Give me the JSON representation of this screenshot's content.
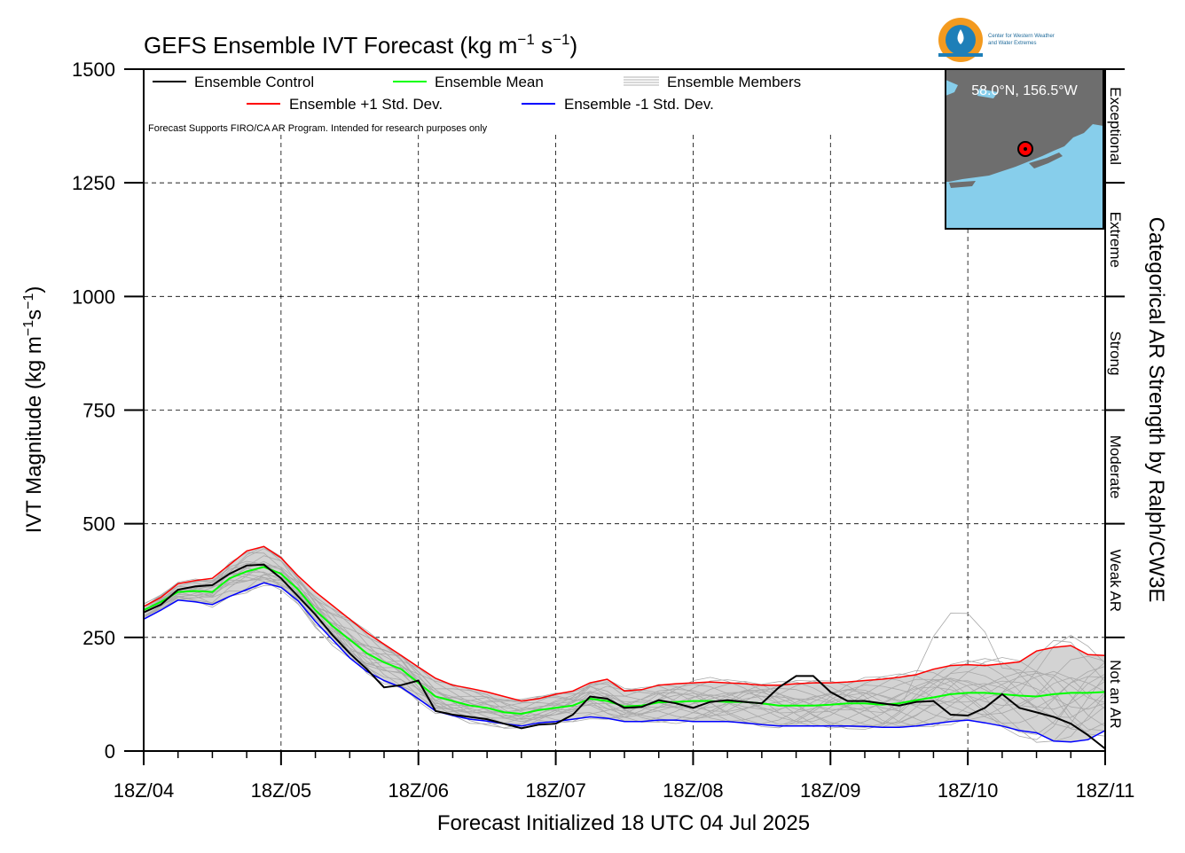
{
  "title": "GEFS Ensemble IVT Forecast (kg m",
  "title_sup1": "−1",
  "title_mid": " s",
  "title_sup2": "−1",
  "title_end": ")",
  "note": "Forecast Supports FIRO/CA AR Program. Intended for research purposes only",
  "logo": {
    "line1": "Center for Western Weather",
    "line2": "and Water Extremes"
  },
  "inset": {
    "location_label": "58.0°N, 156.5°W",
    "land_color": "#6e6e6e",
    "water_color": "#87ceeb",
    "marker_color": "#ff0000"
  },
  "legend": [
    {
      "label": "Ensemble Control",
      "color": "#000000"
    },
    {
      "label": "Ensemble Mean",
      "color": "#00ff00"
    },
    {
      "label": "Ensemble Members",
      "color": "#b0b0b0"
    },
    {
      "label": "Ensemble +1 Std. Dev.",
      "color": "#ff0000"
    },
    {
      "label": "Ensemble -1 Std. Dev.",
      "color": "#0000ff"
    }
  ],
  "chart_data": {
    "type": "line",
    "xlabel": "Forecast Initialized 18 UTC 04 Jul 2025",
    "ylabel": "IVT Magnitude (kg m",
    "ylabel_sup1": "−1",
    "ylabel_mid": "s",
    "ylabel_sup2": "−1",
    "ylabel_end": ")",
    "right_axis_label": "Categorical AR Strength by Ralph/CW3E",
    "x_tick_labels": [
      "18Z/04",
      "18Z/05",
      "18Z/06",
      "18Z/07",
      "18Z/08",
      "18Z/09",
      "18Z/10",
      "18Z/11"
    ],
    "x_units": "forecast hour (0 = 18Z/04)",
    "x_range": [
      0,
      168
    ],
    "y_ticks": [
      0,
      250,
      500,
      750,
      1000,
      1250,
      1500
    ],
    "ylim": [
      0,
      1500
    ],
    "grid": "dashed",
    "categories_right": [
      {
        "label": "Not an AR",
        "range": [
          0,
          250
        ]
      },
      {
        "label": "Weak AR",
        "range": [
          250,
          500
        ]
      },
      {
        "label": "Moderate",
        "range": [
          500,
          750
        ]
      },
      {
        "label": "Strong",
        "range": [
          750,
          1000
        ]
      },
      {
        "label": "Extreme",
        "range": [
          1000,
          1250
        ]
      },
      {
        "label": "Exceptional",
        "range": [
          1250,
          1500
        ]
      }
    ],
    "x": [
      0,
      3,
      6,
      9,
      12,
      15,
      18,
      21,
      24,
      27,
      30,
      33,
      36,
      39,
      42,
      45,
      48,
      51,
      54,
      57,
      60,
      63,
      66,
      69,
      72,
      75,
      78,
      81,
      84,
      87,
      90,
      93,
      96,
      99,
      102,
      105,
      108,
      111,
      114,
      117,
      120,
      123,
      126,
      129,
      132,
      135,
      138,
      141,
      144,
      147,
      150,
      153,
      156,
      159,
      162,
      165,
      168
    ],
    "series": [
      {
        "name": "Ensemble Control",
        "color": "#000000",
        "values": [
          305,
          322,
          355,
          362,
          365,
          390,
          408,
          410,
          380,
          340,
          300,
          255,
          215,
          180,
          140,
          145,
          155,
          88,
          80,
          75,
          70,
          60,
          50,
          58,
          60,
          80,
          120,
          115,
          95,
          97,
          112,
          105,
          95,
          108,
          112,
          108,
          105,
          140,
          165,
          165,
          130,
          110,
          110,
          105,
          100,
          108,
          110,
          80,
          78,
          95,
          125,
          95,
          85,
          75,
          60,
          35,
          5
        ]
      },
      {
        "name": "Ensemble Mean",
        "color": "#00ff00",
        "values": [
          310,
          328,
          350,
          352,
          350,
          380,
          395,
          405,
          390,
          355,
          310,
          275,
          245,
          215,
          195,
          180,
          150,
          120,
          110,
          100,
          95,
          85,
          82,
          90,
          95,
          100,
          115,
          110,
          98,
          100,
          107,
          108,
          110,
          110,
          108,
          108,
          105,
          100,
          100,
          100,
          102,
          105,
          105,
          102,
          105,
          112,
          118,
          125,
          128,
          128,
          125,
          122,
          120,
          125,
          128,
          128,
          130
        ]
      },
      {
        "name": "Ensemble +1 Std. Dev.",
        "color": "#ff0000",
        "values": [
          318,
          338,
          368,
          375,
          380,
          410,
          440,
          450,
          425,
          385,
          350,
          320,
          290,
          260,
          235,
          210,
          185,
          160,
          145,
          138,
          130,
          120,
          110,
          115,
          125,
          132,
          150,
          158,
          132,
          135,
          145,
          148,
          150,
          152,
          150,
          148,
          145,
          145,
          148,
          150,
          150,
          152,
          155,
          158,
          162,
          168,
          180,
          188,
          190,
          188,
          192,
          196,
          220,
          228,
          232,
          212,
          210
        ]
      },
      {
        "name": "Ensemble -1 Std. Dev.",
        "color": "#0000ff",
        "values": [
          290,
          310,
          332,
          328,
          322,
          340,
          355,
          370,
          360,
          330,
          285,
          245,
          205,
          175,
          155,
          140,
          115,
          88,
          78,
          70,
          66,
          60,
          55,
          62,
          65,
          70,
          75,
          72,
          65,
          65,
          68,
          68,
          65,
          65,
          65,
          62,
          58,
          55,
          55,
          55,
          55,
          55,
          54,
          52,
          52,
          55,
          60,
          65,
          68,
          62,
          55,
          45,
          40,
          22,
          20,
          25,
          45
        ]
      }
    ]
  }
}
